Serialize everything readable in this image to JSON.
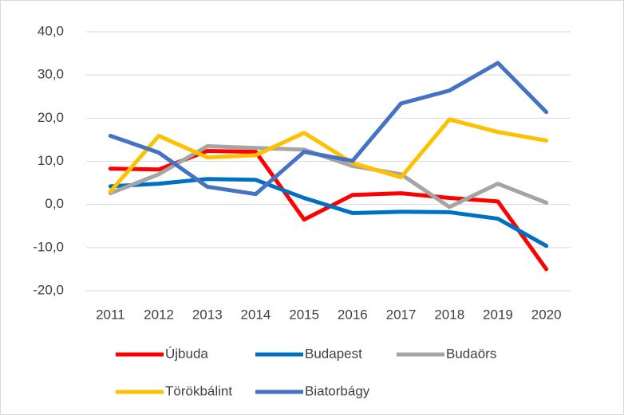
{
  "chart_data": {
    "type": "line",
    "categories": [
      "2011",
      "2012",
      "2013",
      "2014",
      "2015",
      "2016",
      "2017",
      "2018",
      "2019",
      "2020"
    ],
    "series": [
      {
        "name": "Újbuda",
        "color": "#ff0000",
        "values": [
          8.3,
          8.1,
          12.4,
          12.2,
          -3.5,
          2.2,
          2.6,
          1.5,
          0.7,
          -15.0
        ]
      },
      {
        "name": "Budapest",
        "color": "#0070c0",
        "values": [
          4.2,
          4.8,
          5.9,
          5.7,
          1.5,
          -2.0,
          -1.7,
          -1.8,
          -3.3,
          -9.6
        ]
      },
      {
        "name": "Budaörs",
        "color": "#a5a5a5",
        "values": [
          2.6,
          7.0,
          13.5,
          13.1,
          12.7,
          8.9,
          7.0,
          -0.6,
          4.8,
          0.4
        ]
      },
      {
        "name": "Törökbálint",
        "color": "#ffc000",
        "values": [
          3.0,
          15.9,
          10.9,
          11.4,
          16.6,
          9.6,
          6.3,
          19.7,
          16.8,
          14.8
        ]
      },
      {
        "name": "Biatorbágy",
        "color": "#4472c4",
        "values": [
          15.9,
          12.0,
          4.1,
          2.4,
          12.2,
          10.1,
          23.4,
          26.4,
          32.8,
          21.4
        ]
      }
    ],
    "ylim": [
      -20,
      40
    ],
    "yticks": [
      {
        "value": -20,
        "label": "-20,0"
      },
      {
        "value": -10,
        "label": "-10,0"
      },
      {
        "value": 0,
        "label": "0,0"
      },
      {
        "value": 10,
        "label": "10,0"
      },
      {
        "value": 20,
        "label": "20,0"
      },
      {
        "value": 30,
        "label": "30,0"
      },
      {
        "value": 40,
        "label": "40,0"
      }
    ],
    "grid": true
  }
}
